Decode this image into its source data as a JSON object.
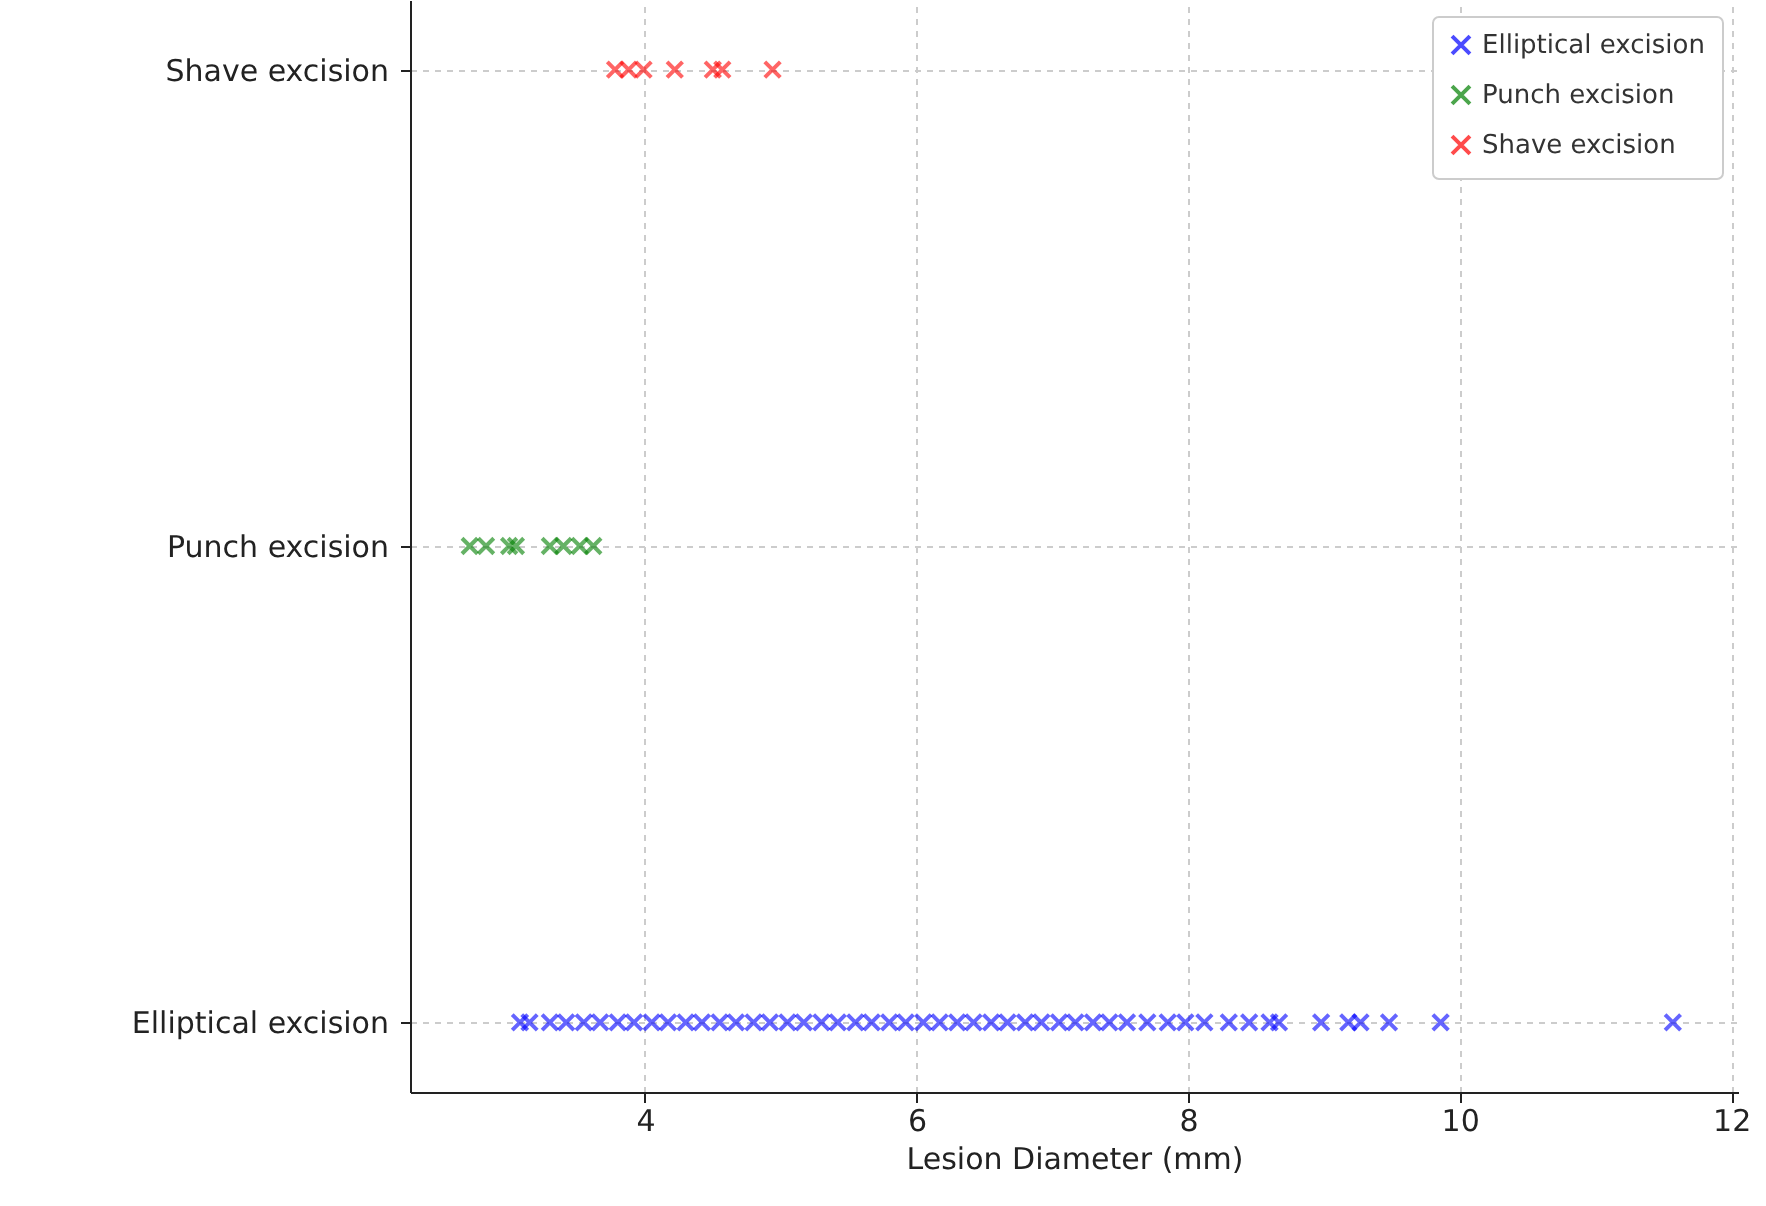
{
  "chart_data": {
    "type": "scatter",
    "orientation": "horizontal",
    "xlabel": "Lesion Diameter (mm)",
    "xlim": [
      2.27,
      12.05
    ],
    "xticks": [
      4,
      6,
      8,
      10,
      12
    ],
    "grid": true,
    "legend": "top right",
    "marker": "cross",
    "series": [
      {
        "name": "Elliptical excision",
        "color": "#0000ff",
        "values": [
          3.08,
          3.15,
          3.3,
          3.42,
          3.55,
          3.67,
          3.8,
          3.92,
          4.05,
          4.17,
          4.3,
          4.42,
          4.55,
          4.67,
          4.8,
          4.92,
          5.05,
          5.17,
          5.3,
          5.42,
          5.55,
          5.67,
          5.8,
          5.92,
          6.05,
          6.17,
          6.3,
          6.42,
          6.55,
          6.67,
          6.8,
          6.92,
          7.05,
          7.17,
          7.3,
          7.42,
          7.55,
          7.7,
          7.85,
          7.98,
          8.12,
          8.3,
          8.45,
          8.6,
          8.67,
          8.98,
          9.18,
          9.27,
          9.48,
          9.86,
          11.57
        ],
        "x": [
          "Elliptical excision",
          "Elliptical excision",
          "Elliptical excision",
          "Elliptical excision",
          "Elliptical excision",
          "Elliptical excision",
          "Elliptical excision",
          "Elliptical excision",
          "Elliptical excision",
          "Elliptical excision",
          "Elliptical excision",
          "Elliptical excision",
          "Elliptical excision",
          "Elliptical excision",
          "Elliptical excision",
          "Elliptical excision",
          "Elliptical excision",
          "Elliptical excision",
          "Elliptical excision",
          "Elliptical excision",
          "Elliptical excision",
          "Elliptical excision",
          "Elliptical excision",
          "Elliptical excision",
          "Elliptical excision",
          "Elliptical excision",
          "Elliptical excision",
          "Elliptical excision",
          "Elliptical excision",
          "Elliptical excision",
          "Elliptical excision",
          "Elliptical excision",
          "Elliptical excision",
          "Elliptical excision",
          "Elliptical excision",
          "Elliptical excision",
          "Elliptical excision",
          "Elliptical excision",
          "Elliptical excision",
          "Elliptical excision",
          "Elliptical excision",
          "Elliptical excision",
          "Elliptical excision",
          "Elliptical excision",
          "Elliptical excision",
          "Elliptical excision",
          "Elliptical excision",
          "Elliptical excision",
          "Elliptical excision",
          "Elliptical excision",
          "Elliptical excision"
        ]
      },
      {
        "name": "Punch excision",
        "color": "#008000",
        "values": [
          2.71,
          2.83,
          3.0,
          3.05,
          3.3,
          3.4,
          3.52,
          3.62
        ],
        "x": [
          "Punch excision",
          "Punch excision",
          "Punch excision",
          "Punch excision",
          "Punch excision",
          "Punch excision",
          "Punch excision",
          "Punch excision"
        ]
      },
      {
        "name": "Shave excision",
        "color": "#ff0000",
        "values": [
          3.78,
          3.88,
          3.99,
          4.22,
          4.5,
          4.57,
          4.94
        ],
        "x": [
          "Shave excision",
          "Shave excision",
          "Shave excision",
          "Shave excision",
          "Shave excision",
          "Shave excision",
          "Shave excision"
        ]
      }
    ],
    "categories": [
      "Shave excision",
      "Punch excision",
      "Elliptical excision"
    ]
  }
}
